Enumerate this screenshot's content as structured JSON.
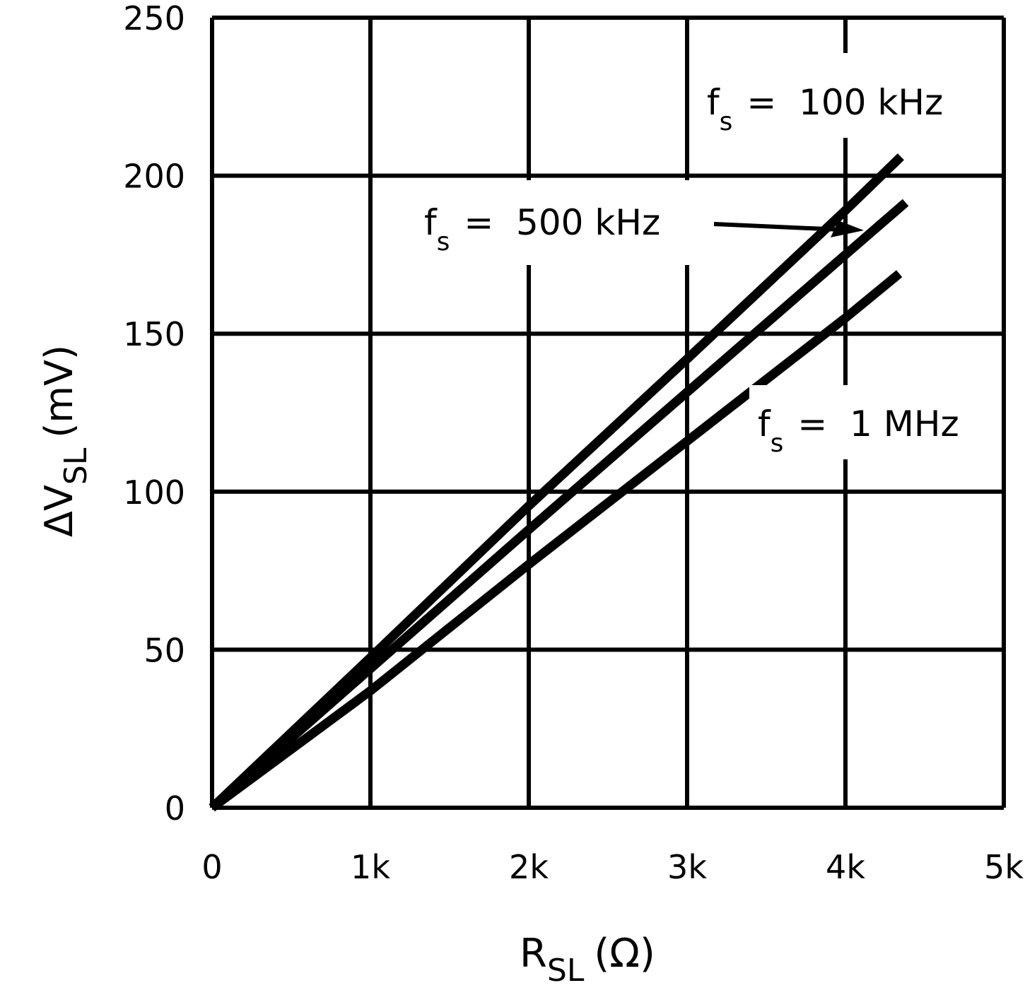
{
  "chart_data": {
    "type": "line",
    "xlabel": "R",
    "xlabel_sub": "SL",
    "xlabel_unit": "(Ω)",
    "ylabel": "ΔV",
    "ylabel_sub": "SL",
    "ylabel_unit": "(mV)",
    "xlim": [
      0,
      5000
    ],
    "ylim": [
      0,
      250
    ],
    "grid": true,
    "x_ticks": [
      0,
      1000,
      2000,
      3000,
      4000,
      5000
    ],
    "x_tick_labels": [
      "0",
      "1k",
      "2k",
      "3k",
      "4k",
      "5k"
    ],
    "y_ticks": [
      0,
      50,
      100,
      150,
      200,
      250
    ],
    "y_tick_labels": [
      "0",
      "50",
      "100",
      "150",
      "200",
      "250"
    ],
    "line_color": "#000000",
    "series": [
      {
        "name": "fs = 100 kHz",
        "label_main": "f",
        "label_sub": "s",
        "label_rest": "=  100 kHz",
        "x": [
          0,
          1000,
          2000,
          3000,
          4000,
          4350
        ],
        "y": [
          0,
          47.5,
          95.5,
          142,
          189,
          206
        ]
      },
      {
        "name": "fs = 500 kHz",
        "label_main": "f",
        "label_sub": "s",
        "label_rest": "=  500 kHz",
        "x": [
          0,
          1000,
          2000,
          3000,
          4000,
          4380
        ],
        "y": [
          0,
          44,
          88,
          131.5,
          175,
          191.5
        ]
      },
      {
        "name": "fs = 1 MHz",
        "label_main": "f",
        "label_sub": "s",
        "label_rest": "=  1 MHz",
        "x": [
          0,
          1000,
          2000,
          3000,
          4000,
          4340
        ],
        "y": [
          0,
          37,
          77,
          116,
          155,
          169
        ]
      }
    ]
  }
}
